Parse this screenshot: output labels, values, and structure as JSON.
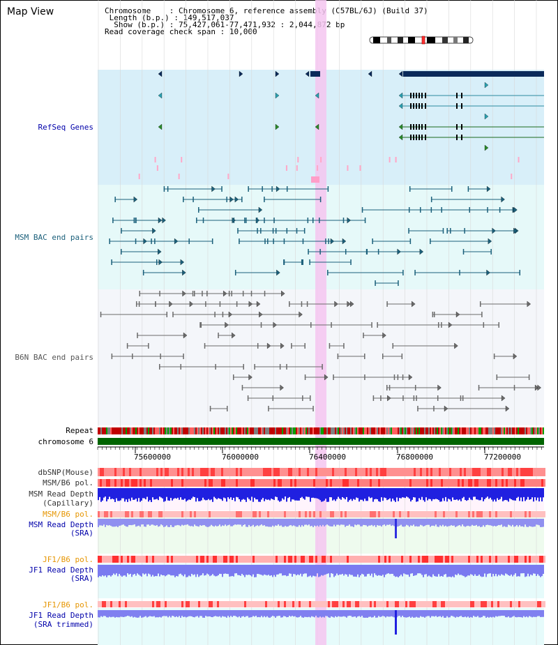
{
  "window": {
    "title": "Map View"
  },
  "info": {
    "chromosome_label": "Chromosome",
    "chromosome_value": "Chromosome 6, reference assembly (C57BL/6J) (Build 37)",
    "length_label": "Length (b.p.)",
    "length_value": "149,517,037",
    "show_label": "Show (b.p.)",
    "show_value": "75,427,061-77,471,932 : 2,044,872 bp",
    "coverage_label": "Read coverage check span",
    "coverage_value": "10,000"
  },
  "tracks": {
    "refseq": {
      "label": "RefSeq Genes",
      "color": "#0000aa",
      "bg": "#d8eff9"
    },
    "msm_bac": {
      "label": "MSM BAC end pairs",
      "color": "#1a5f7a",
      "bg": "#e6f9f9"
    },
    "b6n_bac": {
      "label": "B6N BAC end pairs",
      "color": "#555555",
      "bg": "#f4f6fa"
    },
    "repeat": {
      "label": "Repeat"
    },
    "chromosome": {
      "label": "chromosome 6"
    },
    "dbsnp": {
      "label": "dbSNP(Mouse)"
    },
    "msm_b6_pol_1": {
      "label": "MSM/B6 pol."
    },
    "msm_depth_cap": {
      "label_1": "MSM Read Depth",
      "label_2": "(Capillary)"
    },
    "msm_b6_pol_2": {
      "label": "MSM/B6 pol."
    },
    "msm_depth_sra": {
      "label_1": "MSM Read Depth",
      "label_2": "(SRA)"
    },
    "jf1_b6_pol_1": {
      "label": "JF1/B6 pol."
    },
    "jf1_depth_sra": {
      "label_1": "JF1 Read Depth",
      "label_2": "(SRA)"
    },
    "jf1_b6_pol_2": {
      "label": "JF1/B6 pol."
    },
    "jf1_depth_trim": {
      "label_1": "JF1 Read Depth",
      "label_2": "(SRA trimmed)"
    }
  },
  "axis": {
    "ticks": [
      "75600000",
      "76000000",
      "76400000",
      "76800000",
      "77200000"
    ]
  },
  "colors": {
    "label_gray": "#333333",
    "label_blue": "#0000aa",
    "label_teal": "#1a5f7a",
    "label_orange": "#e69500",
    "chromosome_green": "#006400",
    "highlight": "#f5c6f0",
    "snp_red": "#ff6060",
    "depth_blue": "#2020e0",
    "depth_light": "#8080f0"
  }
}
